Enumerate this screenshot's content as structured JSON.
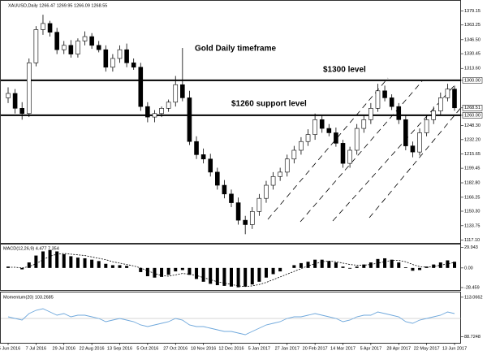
{
  "chart_data": [
    {
      "type": "candlestick",
      "title": "XAUUSD,Daily  1266.47 1269.95 1266.09 1268.55",
      "annotations": [
        "Gold Daily timeframe",
        "$1300 level",
        "$1260 support level"
      ],
      "hlines": [
        1300,
        1260
      ],
      "categories": [
        "15 Jun 2016",
        null,
        null,
        null,
        "7 Jul 2016",
        null,
        null,
        null,
        "29 Jul 2016",
        null,
        null,
        null,
        "22 Aug 2016",
        null,
        null,
        null,
        "13 Sep 2016",
        null,
        null,
        null,
        "5 Oct 2016",
        null,
        null,
        null,
        "27 Oct 2016",
        null,
        null,
        null,
        "18 Nov 2016",
        null,
        null,
        null,
        "12 Dec 2016",
        null,
        null,
        null,
        "5 Jan 2017",
        null,
        null,
        null,
        "27 Jan 2017",
        null,
        null,
        null,
        "20 Feb 2017",
        null,
        null,
        null,
        "14 Mar 2017",
        null,
        null,
        null,
        "5 Apr 2017",
        null,
        null,
        null,
        "28 Apr 2017",
        null,
        null,
        null,
        "22 May 2017",
        null,
        null,
        null,
        "13 Jun 2017"
      ],
      "open": [
        1280,
        1285,
        1268,
        1262,
        1320,
        1358,
        1365,
        1355,
        1335,
        1340,
        1330,
        1345,
        1350,
        1340,
        1335,
        1315,
        1325,
        1335,
        1320,
        1315,
        1270,
        1258,
        1262,
        1268,
        1275,
        1295,
        1280,
        1230,
        1215,
        1210,
        1195,
        1180,
        1170,
        1160,
        1140,
        1135,
        1150,
        1165,
        1180,
        1190,
        1195,
        1210,
        1220,
        1230,
        1238,
        1255,
        1245,
        1240,
        1228,
        1205,
        1220,
        1245,
        1255,
        1268,
        1288,
        1280,
        1270,
        1255,
        1225,
        1218,
        1240,
        1255,
        1265,
        1280,
        1290
      ],
      "high": [
        1292,
        1290,
        1275,
        1325,
        1362,
        1375,
        1368,
        1360,
        1345,
        1346,
        1348,
        1356,
        1354,
        1345,
        1340,
        1330,
        1340,
        1342,
        1325,
        1320,
        1275,
        1266,
        1270,
        1278,
        1305,
        1337,
        1288,
        1236,
        1222,
        1216,
        1200,
        1186,
        1175,
        1166,
        1145,
        1155,
        1170,
        1185,
        1195,
        1200,
        1215,
        1225,
        1235,
        1244,
        1262,
        1260,
        1250,
        1246,
        1232,
        1224,
        1250,
        1260,
        1274,
        1296,
        1294,
        1284,
        1274,
        1260,
        1230,
        1245,
        1260,
        1270,
        1286,
        1296,
        1294
      ],
      "low": [
        1274,
        1262,
        1255,
        1258,
        1316,
        1352,
        1350,
        1330,
        1330,
        1326,
        1326,
        1340,
        1336,
        1332,
        1310,
        1310,
        1320,
        1315,
        1312,
        1265,
        1252,
        1252,
        1258,
        1264,
        1270,
        1276,
        1226,
        1210,
        1205,
        1190,
        1175,
        1165,
        1155,
        1135,
        1124,
        1130,
        1145,
        1160,
        1175,
        1185,
        1190,
        1205,
        1215,
        1225,
        1232,
        1240,
        1236,
        1224,
        1200,
        1200,
        1215,
        1240,
        1250,
        1264,
        1276,
        1266,
        1250,
        1220,
        1212,
        1214,
        1236,
        1250,
        1260,
        1276,
        1265
      ],
      "close": [
        1285,
        1268,
        1262,
        1320,
        1358,
        1365,
        1355,
        1335,
        1340,
        1330,
        1345,
        1350,
        1340,
        1335,
        1315,
        1325,
        1335,
        1320,
        1315,
        1270,
        1258,
        1262,
        1268,
        1275,
        1295,
        1280,
        1230,
        1215,
        1210,
        1195,
        1180,
        1170,
        1160,
        1140,
        1135,
        1150,
        1165,
        1180,
        1190,
        1195,
        1210,
        1220,
        1230,
        1238,
        1255,
        1245,
        1240,
        1228,
        1205,
        1220,
        1245,
        1255,
        1268,
        1288,
        1280,
        1270,
        1255,
        1225,
        1218,
        1240,
        1255,
        1265,
        1280,
        1290,
        1268.51
      ],
      "ylim": [
        1115,
        1390
      ],
      "yticks": [
        1379.15,
        1363.25,
        {
          "value": 1346.5,
          "label": "1346.50"
        },
        1330.45,
        {
          "value": 1313.6,
          "label": "1313.60"
        },
        {
          "value": 1300,
          "label": "1300.00"
        },
        1268.51,
        {
          "value": 1260,
          "label": "1260.00"
        },
        {
          "value": 1248.3,
          "label": "1248.30"
        },
        {
          "value": 1232.2,
          "label": "1232.20"
        },
        1215.65,
        1199.45,
        {
          "value": 1182.8,
          "label": "1182.80"
        },
        1166.25,
        {
          "value": 1150.3,
          "label": "1150.30"
        },
        1133.75,
        {
          "value": 1117.1,
          "label": "1117.10"
        }
      ]
    },
    {
      "type": "macd",
      "title": "MACD(12,26,9) 4.477 7.354",
      "series": [
        {
          "color": "#000000",
          "values": [
            2,
            0,
            -2,
            8,
            18,
            24,
            26,
            24,
            20,
            17,
            15,
            14,
            12,
            10,
            6,
            4,
            4,
            3,
            0,
            -6,
            -12,
            -14,
            -13,
            -10,
            -5,
            -3,
            -10,
            -16,
            -20,
            -23,
            -25,
            -26,
            -27,
            -28,
            -27,
            -24,
            -20,
            -14,
            -9,
            -5,
            0,
            4,
            7,
            9,
            12,
            12,
            10,
            8,
            2,
            -1,
            2,
            5,
            8,
            13,
            14,
            12,
            8,
            1,
            -4,
            -3,
            2,
            5,
            8,
            11,
            9
          ]
        },
        {
          "color": "#000000",
          "values": [
            1,
            1,
            0,
            2,
            6,
            12,
            17,
            20,
            21,
            20,
            19,
            18,
            16,
            14,
            12,
            9,
            7,
            5,
            3,
            0,
            -4,
            -8,
            -11,
            -12,
            -10,
            -8,
            -9,
            -11,
            -14,
            -17,
            -20,
            -22,
            -24,
            -26,
            -27,
            -26,
            -24,
            -21,
            -17,
            -13,
            -9,
            -5,
            -1,
            3,
            6,
            9,
            10,
            9,
            7,
            5,
            4,
            4,
            5,
            7,
            9,
            11,
            11,
            9,
            5,
            2,
            1,
            2,
            4,
            6,
            8
          ]
        }
      ],
      "ylim": [
        -32,
        34
      ],
      "yticks": [
        29.943,
        {
          "value": 0,
          "label": "0.00"
        },
        -28.459
      ]
    },
    {
      "type": "line",
      "title": "Momentum(20) 103.2685",
      "color": "#6fa8dc",
      "values": [
        101,
        100,
        99,
        103,
        105,
        106,
        104,
        102,
        103,
        101,
        102,
        102,
        101,
        100,
        98,
        99,
        100,
        99,
        98,
        96,
        95,
        96,
        97,
        98,
        100,
        99,
        96,
        95,
        95,
        94,
        93,
        92,
        92,
        91,
        90,
        92,
        94,
        96,
        97,
        98,
        100,
        101,
        101,
        102,
        103,
        102,
        101,
        100,
        98,
        99,
        101,
        102,
        102,
        104,
        103,
        102,
        101,
        98,
        97,
        99,
        100,
        101,
        102,
        104,
        103
      ],
      "level": 100,
      "ylim": [
        85,
        116
      ],
      "yticks": [
        113.0662,
        88.7248
      ]
    }
  ]
}
